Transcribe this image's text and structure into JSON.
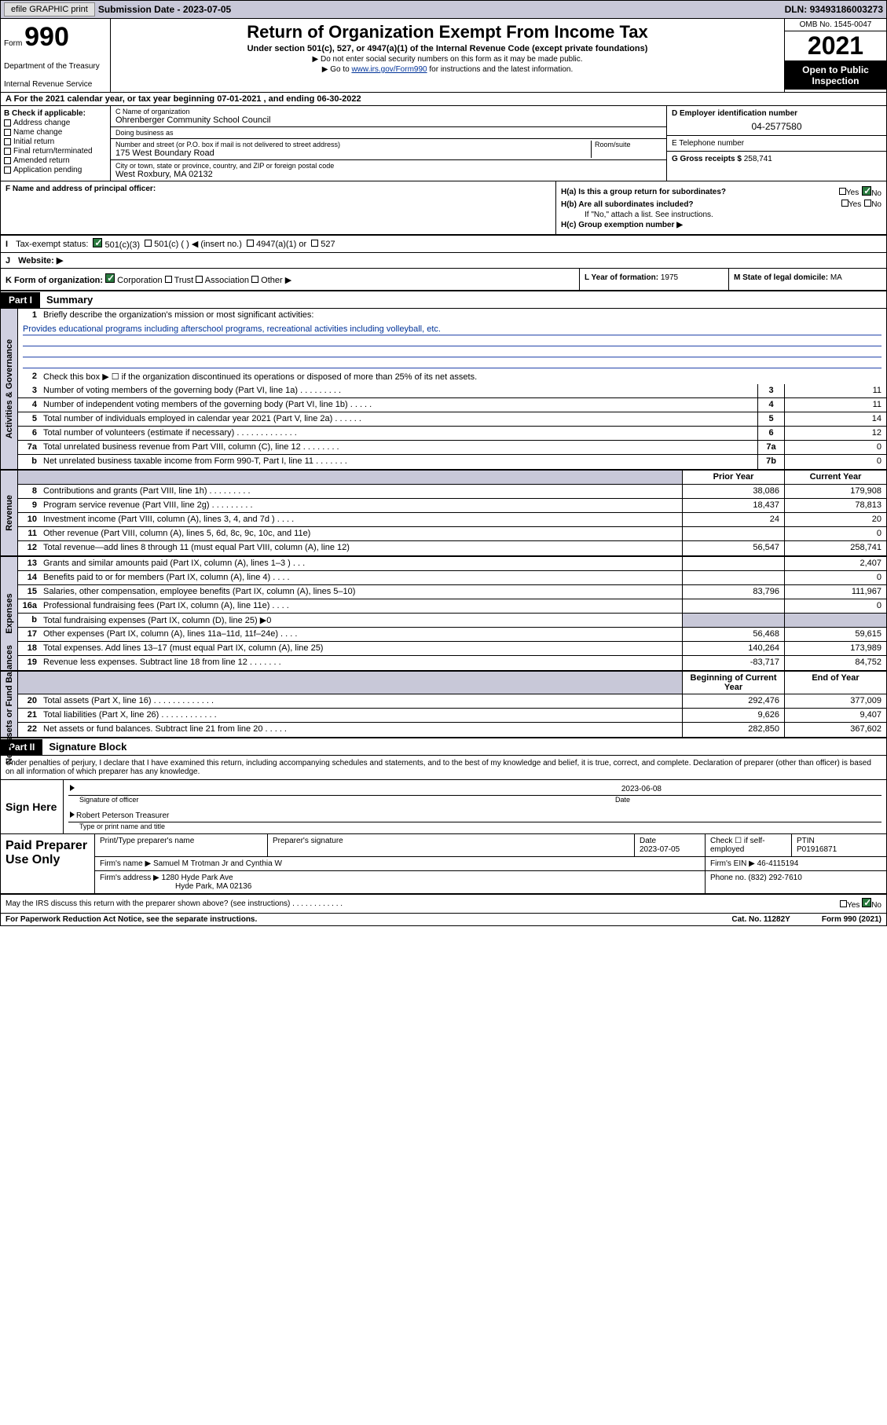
{
  "toolbar": {
    "efile_btn": "efile GRAPHIC print",
    "sub_date_label": "Submission Date - ",
    "sub_date": "2023-07-05",
    "dln_label": "DLN: ",
    "dln": "93493186003273"
  },
  "header": {
    "form_word": "Form",
    "form_num": "990",
    "dept": "Department of the Treasury",
    "irs": "Internal Revenue Service",
    "title": "Return of Organization Exempt From Income Tax",
    "sub": "Under section 501(c), 527, or 4947(a)(1) of the Internal Revenue Code (except private foundations)",
    "note1": "▶ Do not enter social security numbers on this form as it may be made public.",
    "note2_pre": "▶ Go to ",
    "note2_link": "www.irs.gov/Form990",
    "note2_post": " for instructions and the latest information.",
    "omb": "OMB No. 1545-0047",
    "year": "2021",
    "open": "Open to Public Inspection"
  },
  "meta": {
    "a_line": "A For the 2021 calendar year, or tax year beginning 07-01-2021   , and ending 06-30-2022",
    "b_label": "B Check if applicable:",
    "b_opts": [
      "Address change",
      "Name change",
      "Initial return",
      "Final return/terminated",
      "Amended return",
      "Application pending"
    ],
    "c_name_lbl": "C Name of organization",
    "c_name": "Ohrenberger Community School Council",
    "dba_lbl": "Doing business as",
    "dba": "",
    "addr_lbl": "Number and street (or P.O. box if mail is not delivered to street address)",
    "addr_room_lbl": "Room/suite",
    "addr": "175 West Boundary Road",
    "city_lbl": "City or town, state or province, country, and ZIP or foreign postal code",
    "city": "West Roxbury, MA  02132",
    "d_lbl": "D Employer identification number",
    "d_val": "04-2577580",
    "e_lbl": "E Telephone number",
    "e_val": "",
    "g_lbl": "G Gross receipts $ ",
    "g_val": "258,741",
    "f_lbl": "F  Name and address of principal officer:",
    "f_val": "",
    "ha_lbl": "H(a)  Is this a group return for subordinates?",
    "hb_lbl": "H(b)  Are all subordinates included?",
    "hb_note": "If \"No,\" attach a list. See instructions.",
    "hc_lbl": "H(c)  Group exemption number ▶",
    "yes": "Yes",
    "no": "No",
    "i_lbl": "Tax-exempt status:",
    "i_501c3": "501(c)(3)",
    "i_501c": "501(c) (  ) ◀ (insert no.)",
    "i_4947": "4947(a)(1) or",
    "i_527": "527",
    "j_lbl": "Website: ▶",
    "j_val": "",
    "k_lbl": "K Form of organization:",
    "k_corp": "Corporation",
    "k_trust": "Trust",
    "k_assoc": "Association",
    "k_other": "Other ▶",
    "l_lbl": "L Year of formation: ",
    "l_val": "1975",
    "m_lbl": "M State of legal domicile: ",
    "m_val": "MA"
  },
  "part1": {
    "tag": "Part I",
    "title": "Summary",
    "sections": {
      "gov": "Activities & Governance",
      "rev": "Revenue",
      "exp": "Expenses",
      "net": "Net Assets or Fund Balances"
    },
    "q1_lbl": "Briefly describe the organization's mission or most significant activities:",
    "q1_text": "Provides educational programs including afterschool programs, recreational activities including volleyball, etc.",
    "q2": "Check this box ▶ ☐  if the organization discontinued its operations or disposed of more than 25% of its net assets.",
    "rows_gov": [
      {
        "n": "3",
        "d": "Number of voting members of the governing body (Part VI, line 1a)   .   .   .   .   .   .   .   .   .",
        "c": "3",
        "v": "11"
      },
      {
        "n": "4",
        "d": "Number of independent voting members of the governing body (Part VI, line 1b)   .   .   .   .   .",
        "c": "4",
        "v": "11"
      },
      {
        "n": "5",
        "d": "Total number of individuals employed in calendar year 2021 (Part V, line 2a)   .   .   .   .   .   .",
        "c": "5",
        "v": "14"
      },
      {
        "n": "6",
        "d": "Total number of volunteers (estimate if necessary)   .   .   .   .   .   .   .   .   .   .   .   .   .",
        "c": "6",
        "v": "12"
      },
      {
        "n": "7a",
        "d": "Total unrelated business revenue from Part VIII, column (C), line 12   .   .   .   .   .   .   .   .",
        "c": "7a",
        "v": "0"
      },
      {
        "n": "b",
        "d": "Net unrelated business taxable income from Form 990-T, Part I, line 11   .   .   .   .   .   .   .",
        "c": "7b",
        "v": "0"
      }
    ],
    "col_hdrs": {
      "prior": "Prior Year",
      "current": "Current Year",
      "begin": "Beginning of Current Year",
      "end": "End of Year"
    },
    "rows_rev": [
      {
        "n": "8",
        "d": "Contributions and grants (Part VIII, line 1h)   .   .   .   .   .   .   .   .   .",
        "p": "38,086",
        "c": "179,908"
      },
      {
        "n": "9",
        "d": "Program service revenue (Part VIII, line 2g)   .   .   .   .   .   .   .   .   .",
        "p": "18,437",
        "c": "78,813"
      },
      {
        "n": "10",
        "d": "Investment income (Part VIII, column (A), lines 3, 4, and 7d )   .   .   .   .",
        "p": "24",
        "c": "20"
      },
      {
        "n": "11",
        "d": "Other revenue (Part VIII, column (A), lines 5, 6d, 8c, 9c, 10c, and 11e)",
        "p": "",
        "c": "0"
      },
      {
        "n": "12",
        "d": "Total revenue—add lines 8 through 11 (must equal Part VIII, column (A), line 12)",
        "p": "56,547",
        "c": "258,741"
      }
    ],
    "rows_exp": [
      {
        "n": "13",
        "d": "Grants and similar amounts paid (Part IX, column (A), lines 1–3 )   .   .   .",
        "p": "",
        "c": "2,407"
      },
      {
        "n": "14",
        "d": "Benefits paid to or for members (Part IX, column (A), line 4)   .   .   .   .",
        "p": "",
        "c": "0"
      },
      {
        "n": "15",
        "d": "Salaries, other compensation, employee benefits (Part IX, column (A), lines 5–10)",
        "p": "83,796",
        "c": "111,967"
      },
      {
        "n": "16a",
        "d": "Professional fundraising fees (Part IX, column (A), line 11e)   .   .   .   .",
        "p": "",
        "c": "0"
      },
      {
        "n": "b",
        "d": "Total fundraising expenses (Part IX, column (D), line 25) ▶0",
        "p": "GRAY",
        "c": "GRAY"
      },
      {
        "n": "17",
        "d": "Other expenses (Part IX, column (A), lines 11a–11d, 11f–24e)   .   .   .   .",
        "p": "56,468",
        "c": "59,615"
      },
      {
        "n": "18",
        "d": "Total expenses. Add lines 13–17 (must equal Part IX, column (A), line 25)",
        "p": "140,264",
        "c": "173,989"
      },
      {
        "n": "19",
        "d": "Revenue less expenses. Subtract line 18 from line 12   .   .   .   .   .   .   .",
        "p": "-83,717",
        "c": "84,752"
      }
    ],
    "rows_net": [
      {
        "n": "20",
        "d": "Total assets (Part X, line 16)   .   .   .   .   .   .   .   .   .   .   .   .   .",
        "p": "292,476",
        "c": "377,009"
      },
      {
        "n": "21",
        "d": "Total liabilities (Part X, line 26)   .   .   .   .   .   .   .   .   .   .   .   .",
        "p": "9,626",
        "c": "9,407"
      },
      {
        "n": "22",
        "d": "Net assets or fund balances. Subtract line 21 from line 20   .   .   .   .   .",
        "p": "282,850",
        "c": "367,602"
      }
    ]
  },
  "part2": {
    "tag": "Part II",
    "title": "Signature Block",
    "intro": "Under penalties of perjury, I declare that I have examined this return, including accompanying schedules and statements, and to the best of my knowledge and belief, it is true, correct, and complete. Declaration of preparer (other than officer) is based on all information of which preparer has any knowledge.",
    "sign_here": "Sign Here",
    "sig_of_officer": "Signature of officer",
    "sig_date": "2023-06-08",
    "date_lbl": "Date",
    "officer_name": "Robert Peterson Treasurer",
    "type_name_lbl": "Type or print name and title",
    "paid_prep": "Paid Preparer Use Only",
    "prep_name_lbl": "Print/Type preparer's name",
    "prep_sig_lbl": "Preparer's signature",
    "prep_date_lbl": "Date",
    "prep_date": "2023-07-05",
    "prep_check_lbl": "Check ☐ if self-employed",
    "ptin_lbl": "PTIN",
    "ptin": "P01916871",
    "firm_name_lbl": "Firm's name   ▶ ",
    "firm_name": "Samuel M Trotman Jr and Cynthia W",
    "firm_ein_lbl": "Firm's EIN ▶ ",
    "firm_ein": "46-4115194",
    "firm_addr_lbl": "Firm's address ▶ ",
    "firm_addr1": "1280 Hyde Park Ave",
    "firm_addr2": "Hyde Park, MA  02136",
    "phone_lbl": "Phone no. ",
    "phone": "(832) 292-7610",
    "may_irs": "May the IRS discuss this return with the preparer shown above? (see instructions)   .   .   .   .   .   .   .   .   .   .   .   .",
    "paperwork": "For Paperwork Reduction Act Notice, see the separate instructions.",
    "cat": "Cat. No. 11282Y",
    "form_bottom": "Form 990 (2021)"
  },
  "colors": {
    "toolbar_bg": "#c8c8d8",
    "link": "#003399",
    "check_green": "#2a7a3f",
    "vert_bg": "#d0d0e0"
  }
}
